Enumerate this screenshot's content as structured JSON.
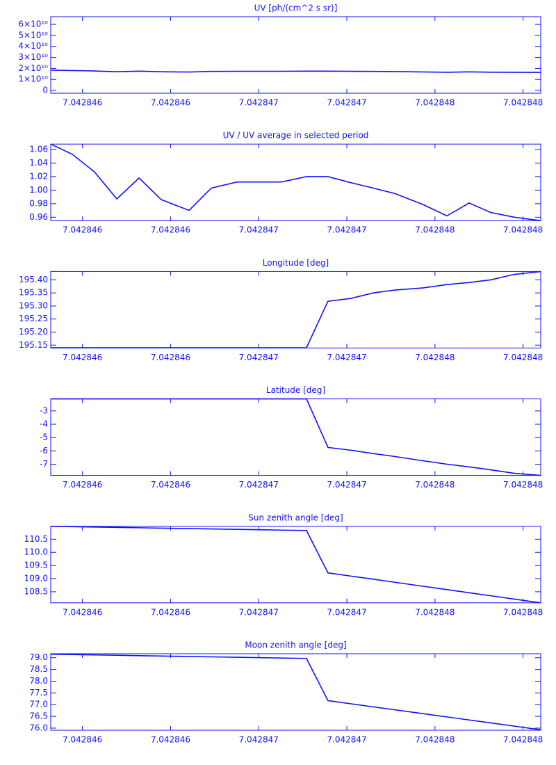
{
  "chart_data": [
    {
      "type": "line",
      "title": "UV [ph/(cm^2 s sr)]",
      "color": "#1010ff",
      "x": [
        7.04284562,
        7.042845742,
        7.042845868,
        7.042845995,
        7.042846121,
        7.042846247,
        7.042846405,
        7.042846531,
        7.042846677,
        7.042846803,
        7.042846929,
        7.042847071,
        7.042847193,
        7.042847323,
        7.04284745,
        7.042847572,
        7.04284773,
        7.042847868,
        7.042847994,
        7.042848116,
        7.04284825,
        7.0428484
      ],
      "values": [
        18400000000,
        18100000000,
        17700000000,
        17000000000,
        17500000000,
        17000000000,
        16700000000,
        17300000000,
        17400000000,
        17400000000,
        17400000000,
        17500000000,
        17500000000,
        17400000000,
        17300000000,
        17100000000,
        16800000000,
        16500000000,
        16900000000,
        16600000000,
        16500000000,
        16400000000
      ],
      "xlim": [
        7.04284562,
        7.0428484
      ],
      "xticks": [
        {
          "value": 7.0428458,
          "label": "7.042846"
        },
        {
          "value": 7.0428463,
          "label": "7.042846"
        },
        {
          "value": 7.0428468,
          "label": "7.042847"
        },
        {
          "value": 7.0428473,
          "label": "7.042847"
        },
        {
          "value": 7.0428478,
          "label": "7.042848"
        },
        {
          "value": 7.0428483,
          "label": "7.042848"
        }
      ],
      "ylim": [
        -2500000000,
        67000000000
      ],
      "yticks": [
        0,
        {
          "value": 10000000000,
          "label": "1×10¹⁰"
        },
        {
          "value": 20000000000,
          "label": "2×10¹⁰"
        },
        {
          "value": 30000000000,
          "label": "3×10¹⁰"
        },
        {
          "value": 40000000000,
          "label": "4×10¹⁰"
        },
        {
          "value": 50000000000,
          "label": "5×10¹⁰"
        },
        {
          "value": 60000000000,
          "label": "6×10¹⁰"
        }
      ]
    },
    {
      "type": "line",
      "title": "UV / UV average in selected period",
      "color": "#1010ff",
      "x": [
        7.04284562,
        7.042845742,
        7.042845868,
        7.042845995,
        7.042846121,
        7.042846247,
        7.042846405,
        7.042846531,
        7.042846677,
        7.042846803,
        7.042846929,
        7.042847071,
        7.042847193,
        7.042847323,
        7.04284745,
        7.042847572,
        7.04284773,
        7.042847868,
        7.042847994,
        7.042848116,
        7.04284825,
        7.0428484
      ],
      "values": [
        1.068,
        1.053,
        1.027,
        0.987,
        1.018,
        0.986,
        0.97,
        1.003,
        1.012,
        1.012,
        1.012,
        1.02,
        1.02,
        1.011,
        1.003,
        0.995,
        0.979,
        0.962,
        0.981,
        0.967,
        0.96,
        0.955
      ],
      "xlim": [
        7.04284562,
        7.0428484
      ],
      "xticks": [
        {
          "value": 7.0428458,
          "label": "7.042846"
        },
        {
          "value": 7.0428463,
          "label": "7.042846"
        },
        {
          "value": 7.0428468,
          "label": "7.042847"
        },
        {
          "value": 7.0428473,
          "label": "7.042847"
        },
        {
          "value": 7.0428478,
          "label": "7.042848"
        },
        {
          "value": 7.0428483,
          "label": "7.042848"
        }
      ],
      "ylim": [
        0.955,
        1.068
      ],
      "yticks": [
        {
          "value": 0.96,
          "label": "0.96"
        },
        {
          "value": 0.98,
          "label": "0.98"
        },
        {
          "value": 1,
          "label": "1.00"
        },
        {
          "value": 1.02,
          "label": "1.02"
        },
        {
          "value": 1.04,
          "label": "1.04"
        },
        {
          "value": 1.06,
          "label": "1.06"
        }
      ]
    },
    {
      "type": "line",
      "title": "Longitude [deg]",
      "color": "#1010ff",
      "x": [
        7.04284562,
        7.042845742,
        7.042845868,
        7.042845995,
        7.042846121,
        7.042846247,
        7.042846405,
        7.042846531,
        7.042846677,
        7.042846803,
        7.042846929,
        7.042847071,
        7.042847193,
        7.042847323,
        7.04284745,
        7.042847572,
        7.04284773,
        7.042847868,
        7.042847994,
        7.042848116,
        7.04284825,
        7.0428484
      ],
      "values": [
        195.14,
        195.14,
        195.14,
        195.14,
        195.14,
        195.14,
        195.14,
        195.14,
        195.14,
        195.14,
        195.14,
        195.14,
        195.318,
        195.329,
        195.35,
        195.361,
        195.369,
        195.382,
        195.39,
        195.4,
        195.421,
        195.432
      ],
      "xlim": [
        7.04284562,
        7.0428484
      ],
      "xticks": [
        {
          "value": 7.0428458,
          "label": "7.042846"
        },
        {
          "value": 7.0428463,
          "label": "7.042846"
        },
        {
          "value": 7.0428468,
          "label": "7.042847"
        },
        {
          "value": 7.0428473,
          "label": "7.042847"
        },
        {
          "value": 7.0428478,
          "label": "7.042848"
        },
        {
          "value": 7.0428483,
          "label": "7.042848"
        }
      ],
      "ylim": [
        195.139,
        195.432
      ],
      "yticks": [
        195.15,
        {
          "value": 195.2,
          "label": "195.20"
        },
        195.25,
        {
          "value": 195.3,
          "label": "195.30"
        },
        195.35,
        {
          "value": 195.4,
          "label": "195.40"
        }
      ]
    },
    {
      "type": "line",
      "title": "Latitude [deg]",
      "color": "#1010ff",
      "x": [
        7.04284562,
        7.042845742,
        7.042845868,
        7.042845995,
        7.042846121,
        7.042846247,
        7.042846405,
        7.042846531,
        7.042846677,
        7.042846803,
        7.042846929,
        7.042847071,
        7.042847193,
        7.042847323,
        7.04284745,
        7.042847572,
        7.04284773,
        7.042847868,
        7.042847994,
        7.042848116,
        7.04284825,
        7.0428484
      ],
      "values": [
        -2.1,
        -2.1,
        -2.1,
        -2.1,
        -2.1,
        -2.1,
        -2.1,
        -2.1,
        -2.1,
        -2.1,
        -2.1,
        -2.1,
        -5.74,
        -5.95,
        -6.2,
        -6.42,
        -6.74,
        -7.0,
        -7.2,
        -7.42,
        -7.68,
        -7.84
      ],
      "xlim": [
        7.04284562,
        7.0428484
      ],
      "xticks": [
        {
          "value": 7.0428458,
          "label": "7.042846"
        },
        {
          "value": 7.0428463,
          "label": "7.042846"
        },
        {
          "value": 7.0428468,
          "label": "7.042847"
        },
        {
          "value": 7.0428473,
          "label": "7.042847"
        },
        {
          "value": 7.0428478,
          "label": "7.042848"
        },
        {
          "value": 7.0428483,
          "label": "7.042848"
        }
      ],
      "ylim": [
        -7.84,
        -2.1
      ],
      "yticks": [
        -7,
        -6,
        -5,
        -4,
        -3
      ]
    },
    {
      "type": "line",
      "title": "Sun zenith angle [deg]",
      "color": "#1010ff",
      "x": [
        7.04284562,
        7.042845742,
        7.042845868,
        7.042845995,
        7.042846121,
        7.042846247,
        7.042846405,
        7.042846531,
        7.042846677,
        7.042846803,
        7.042846929,
        7.042847071,
        7.042847193,
        7.042847323,
        7.04284745,
        7.042847572,
        7.04284773,
        7.042847868,
        7.042847994,
        7.042848116,
        7.04284825,
        7.0428484
      ],
      "values": [
        110.99,
        110.977,
        110.963,
        110.949,
        110.935,
        110.921,
        110.903,
        110.89,
        110.873,
        110.86,
        110.846,
        110.83,
        109.22,
        109.097,
        108.978,
        108.862,
        108.713,
        108.583,
        108.464,
        108.349,
        108.222,
        108.08
      ],
      "xlim": [
        7.04284562,
        7.0428484
      ],
      "xticks": [
        {
          "value": 7.0428458,
          "label": "7.042846"
        },
        {
          "value": 7.0428463,
          "label": "7.042846"
        },
        {
          "value": 7.0428468,
          "label": "7.042847"
        },
        {
          "value": 7.0428473,
          "label": "7.042847"
        },
        {
          "value": 7.0428478,
          "label": "7.042848"
        },
        {
          "value": 7.0428483,
          "label": "7.042848"
        }
      ],
      "ylim": [
        108.08,
        110.99
      ],
      "yticks": [
        108.5,
        {
          "value": 109,
          "label": "109.0"
        },
        109.5,
        {
          "value": 110,
          "label": "110.0"
        },
        110.5
      ]
    },
    {
      "type": "line",
      "title": "Moon zenith angle [deg]",
      "color": "#1010ff",
      "x": [
        7.04284562,
        7.042845742,
        7.042845868,
        7.042845995,
        7.042846121,
        7.042846247,
        7.042846405,
        7.042846531,
        7.042846677,
        7.042846803,
        7.042846929,
        7.042847071,
        7.042847193,
        7.042847323,
        7.04284745,
        7.042847572,
        7.04284773,
        7.042847868,
        7.042847994,
        7.042848116,
        7.04284825,
        7.0428484
      ],
      "values": [
        79.15,
        79.135,
        79.119,
        79.104,
        79.088,
        79.072,
        79.053,
        79.037,
        79.019,
        79.003,
        78.988,
        78.97,
        77.17,
        77.036,
        76.907,
        76.781,
        76.619,
        76.477,
        76.347,
        76.222,
        76.084,
        75.93
      ],
      "xlim": [
        7.04284562,
        7.0428484
      ],
      "xticks": [
        {
          "value": 7.0428458,
          "label": "7.042846"
        },
        {
          "value": 7.0428463,
          "label": "7.042846"
        },
        {
          "value": 7.0428468,
          "label": "7.042847"
        },
        {
          "value": 7.0428473,
          "label": "7.042847"
        },
        {
          "value": 7.0428478,
          "label": "7.042848"
        },
        {
          "value": 7.0428483,
          "label": "7.042848"
        }
      ],
      "ylim": [
        75.91,
        79.17
      ],
      "yticks": [
        {
          "value": 76,
          "label": "76.0"
        },
        76.5,
        {
          "value": 77,
          "label": "77.0"
        },
        77.5,
        {
          "value": 78,
          "label": "78.0"
        },
        78.5,
        {
          "value": 79,
          "label": "79.0"
        }
      ]
    }
  ]
}
